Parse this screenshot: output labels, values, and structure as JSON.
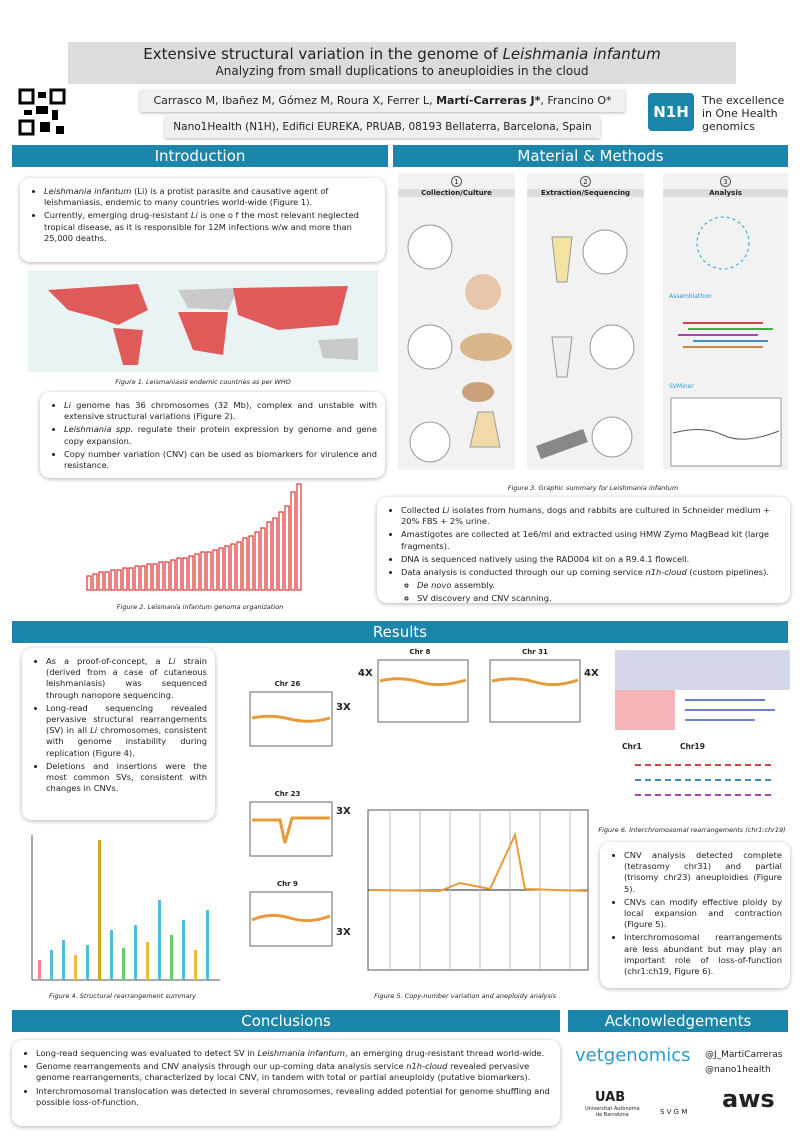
{
  "header": {
    "title": [
      "Extensive structural variation in the genome of ",
      "Leishmania infantum"
    ],
    "subtitle": "Analyzing from small duplications to aneuploidies in the cloud",
    "authors": [
      "Carrasco M, Ibañez M, Gómez M, Roura X, Ferrer L, ",
      "Martí-Carreras J*",
      ", Francino O*"
    ],
    "affiliation": "Nano1Health (N1H), Edifici EUREKA, PRUAB, 08193 Bellaterra, Barcelona, Spain",
    "logo": "N1H",
    "tagline": [
      "The excellence",
      "in One Health",
      "genomics"
    ]
  },
  "introduction": {
    "heading": "Introduction",
    "bullets": [
      [
        "Leishmania infantum",
        " (Li) is a protist parasite and causative agent of leishmaniasis, endemic to many countries world-wide (Figure 1)."
      ],
      [
        "Currently, emerging drug-resistant ",
        "Li",
        " is one o f the most relevant neglected tropical disease, as it is responsible for 12M infections w/w and more than 25,000 deaths."
      ]
    ],
    "figure1_caption": "Figure 1. Leismaniasis endemic countries as per WHO",
    "bullets2": [
      [
        "Li",
        " genome has 36 chromosomes (32 Mb), complex and unstable with extensive structural variations (Figure 2)."
      ],
      [
        "Leishmania spp.",
        " regulate their protein expression by genome and gene copy expansion."
      ],
      [
        "Copy number variation (CNV) can be used as biomarkers for virulence and resistance."
      ]
    ],
    "figure2_caption": [
      "Figure 2. ",
      "Leismania infantum",
      " genoma organization"
    ]
  },
  "methods": {
    "heading": "Material & Methods",
    "panels": [
      {
        "number": "1",
        "title": "Collection/Culture"
      },
      {
        "number": "2",
        "title": "Extraction/Sequencing"
      },
      {
        "number": "3",
        "title": "Analysis"
      }
    ],
    "tools": [
      "Assemblathon",
      "SVMiner"
    ],
    "figure3_caption": "Figure 3. Graphic summary for Leishmania infantum",
    "bullets": [
      [
        "Collected ",
        "Li",
        " isolates from humans, dogs and rabbits are cultured in Schneider medium + 20% FBS + 2% urine."
      ],
      [
        "Amastigotes are collected at 1e6/ml and extracted using HMW Zymo MagBead kit (large fragments)."
      ],
      [
        "DNA is sequenced natively using the  RAD004 kit on a R9.4.1 flowcell."
      ],
      [
        "Data analysis is conducted through our up coming service ",
        "n1h-cloud",
        " (custom pipelines)."
      ]
    ],
    "sub_bullets": [
      [
        "De novo",
        " assembly."
      ],
      [
        "SV discovery and CNV scanning."
      ]
    ]
  },
  "results": {
    "heading": "Results",
    "bullets_left": [
      [
        "As a proof-of-concept, a ",
        "Li",
        " strain (derived from a case of cutaneous leishmaniasis) was sequenced through nanopore sequencing."
      ],
      [
        "Long-read sequencing revealed pervasive structural rearrangements (SV) in all ",
        "Li",
        " chromosomes, consistent with genome instability during replication (Figure 4)."
      ],
      [
        "Deletions and insertions were the most common SVs, consistent with changes in CNVs."
      ]
    ],
    "panels": [
      {
        "title": "Chr 26",
        "ploidy": "3X"
      },
      {
        "title": "Chr 23",
        "ploidy": "3X"
      },
      {
        "title": "Chr 9",
        "ploidy": "3X"
      },
      {
        "title": "Chr 8",
        "ploidy": "4X"
      },
      {
        "title": "Chr 31",
        "ploidy": "4X"
      }
    ],
    "figure6_labels": [
      "Chr1",
      "Chr19"
    ],
    "figure4_caption": "Figure 4. Structural rearrangement summary",
    "figure5_caption": "Figure 5. Copy-number variation and aneploidy analysis",
    "figure6_caption": "Figure 6. Interchromosomal rearrangements (chr1:chr19)",
    "bullets_right": [
      "CNV analysis detected complete (tetrasomy chr31) and partial (trisomy chr23) aneuploidies (Figure 5).",
      "CNVs can modify effective ploidy by local expansion and contraction (Figure 5).",
      "Interchromosomal rearrangements are less abundant but may play an important role of loss-of-function (chr1:ch19, Figure 6)."
    ]
  },
  "conclusions": {
    "heading": "Conclusions",
    "bullets": [
      [
        "Long-read sequencing was evaluated to detect SV in ",
        "Leishmania infantum",
        ", an  emerging drug-resistant thread world-wide."
      ],
      [
        "Genome rearrangements and CNV analysis through our up-coming data analysis service ",
        "n1h-cloud",
        " revealed pervasive genome rearrangements, characterized by local CNV, in tandem with total or partial aneuploidy (putative biomarkers)."
      ],
      [
        "Interchromosomal translocation was detected in several chromosomes, revealing added potential for genome shuffling and possible loss-of-function."
      ]
    ]
  },
  "acknowledgements": {
    "heading": "Acknowledgements",
    "sponsor": "vetgenomics",
    "twitter": [
      "@J_MartiCarreras",
      "@nano1health"
    ],
    "uab": "UAB",
    "uab_name": [
      "Universitat Autònoma",
      "de Barcelona"
    ],
    "svgm": "S V G M",
    "aws": "aws"
  }
}
